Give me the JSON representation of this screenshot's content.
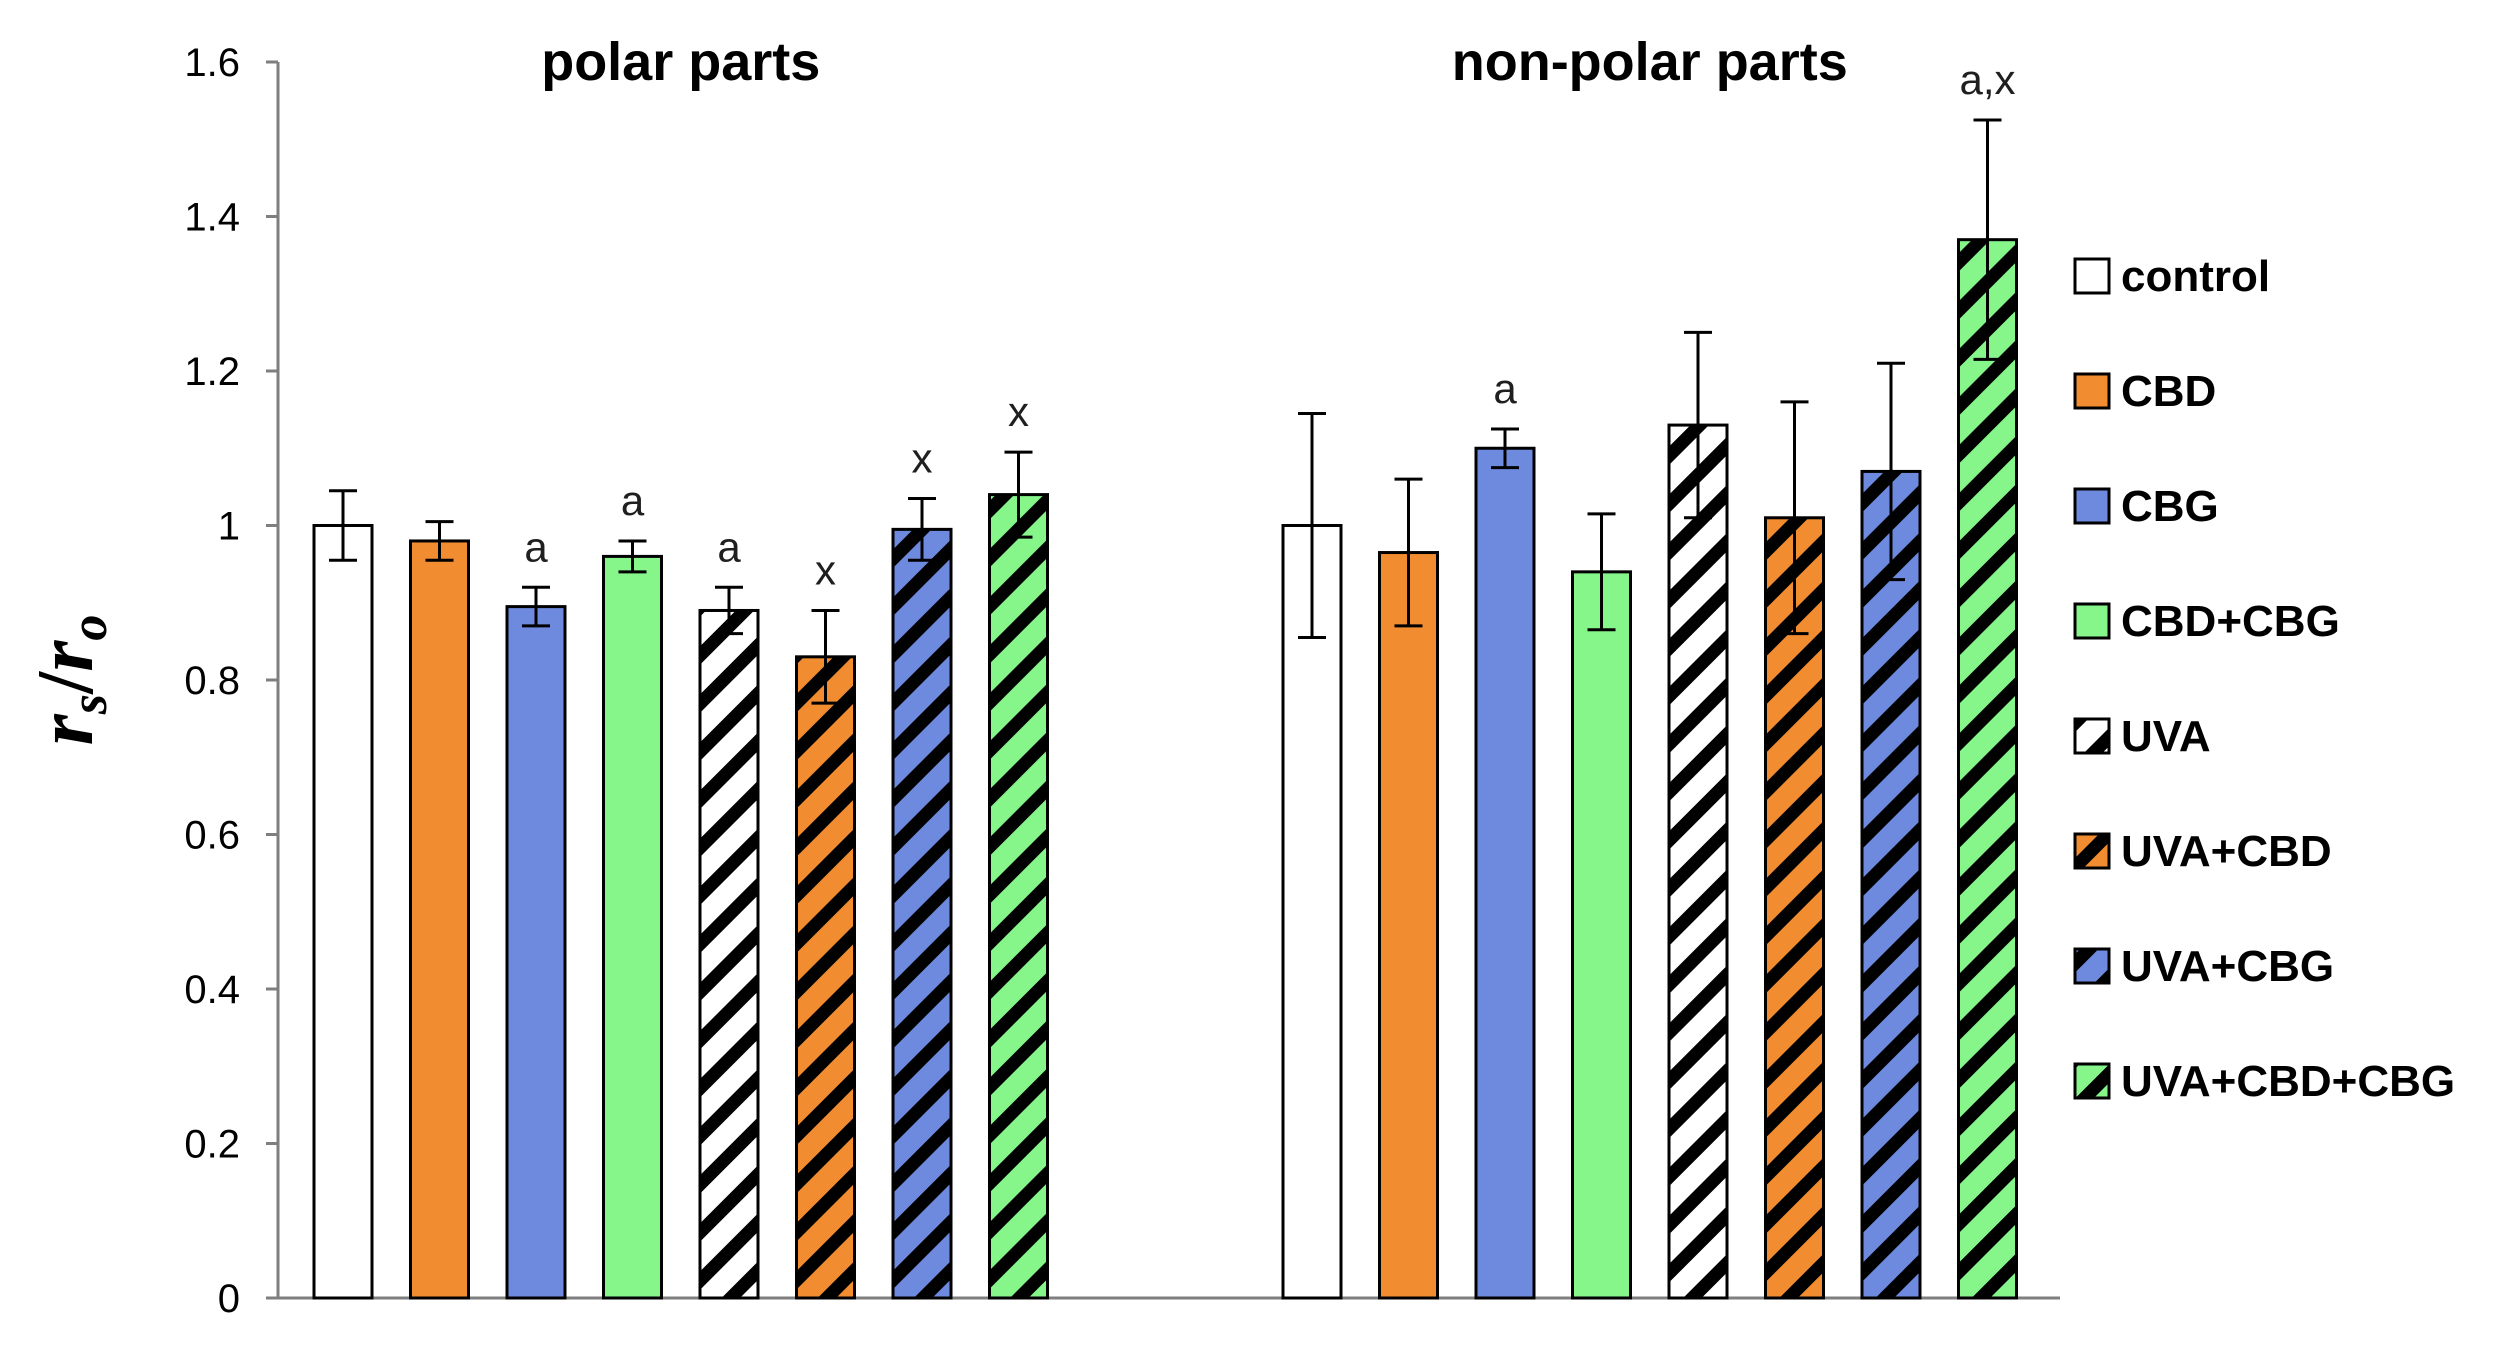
{
  "chart_data": {
    "type": "bar",
    "title": "",
    "xlabel": "",
    "ylabel": "r",
    "ylabel_sub_numerator": "s",
    "ylabel_slash": "/",
    "ylabel_denominator": "r",
    "ylabel_sub_denominator": "o",
    "ylim": [
      0,
      1.6
    ],
    "yticks": [
      "0",
      "0.2",
      "0.4",
      "0.6",
      "0.8",
      "1",
      "1.2",
      "1.4",
      "1.6"
    ],
    "ytick_values": [
      0,
      0.2,
      0.4,
      0.6,
      0.8,
      1.0,
      1.2,
      1.4,
      1.6
    ],
    "grid": false,
    "legend_position": "right",
    "categories": [
      "polar parts",
      "non-polar parts"
    ],
    "series": [
      {
        "name": "control",
        "color": "#ffffff",
        "hatch": false,
        "values": [
          1.0,
          1.0
        ],
        "errors": [
          0.045,
          0.145
        ],
        "annotations": [
          "",
          ""
        ]
      },
      {
        "name": "CBD",
        "color": "#f28c30",
        "hatch": false,
        "values": [
          0.98,
          0.965
        ],
        "errors": [
          0.025,
          0.095
        ],
        "annotations": [
          "",
          ""
        ]
      },
      {
        "name": "CBG",
        "color": "#6e8ade",
        "hatch": false,
        "values": [
          0.895,
          1.1
        ],
        "errors": [
          0.025,
          0.025
        ],
        "annotations": [
          "a",
          "a"
        ]
      },
      {
        "name": "CBD+CBG",
        "color": "#86f58a",
        "hatch": false,
        "values": [
          0.96,
          0.94
        ],
        "errors": [
          0.02,
          0.075
        ],
        "annotations": [
          "a",
          ""
        ]
      },
      {
        "name": "UVA",
        "color": "#ffffff",
        "hatch": true,
        "values": [
          0.89,
          1.13
        ],
        "errors": [
          0.03,
          0.12
        ],
        "annotations": [
          "a",
          ""
        ]
      },
      {
        "name": "UVA+CBD",
        "color": "#f28c30",
        "hatch": true,
        "values": [
          0.83,
          1.01
        ],
        "errors": [
          0.06,
          0.15
        ],
        "annotations": [
          "x",
          ""
        ]
      },
      {
        "name": "UVA+CBG",
        "color": "#6e8ade",
        "hatch": true,
        "values": [
          0.995,
          1.07
        ],
        "errors": [
          0.04,
          0.14
        ],
        "annotations": [
          "x",
          ""
        ]
      },
      {
        "name": "UVA+CBD+CBG",
        "color": "#86f58a",
        "hatch": true,
        "values": [
          1.04,
          1.37
        ],
        "errors": [
          0.055,
          0.155
        ],
        "annotations": [
          "x",
          "a,x"
        ]
      }
    ]
  }
}
